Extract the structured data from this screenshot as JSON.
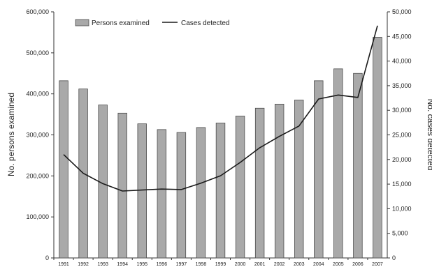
{
  "chart_data": {
    "type": "bar",
    "categories": [
      "1991",
      "1992",
      "1993",
      "1994",
      "1995",
      "1996",
      "1997",
      "1998",
      "1999",
      "2000",
      "2001",
      "2002",
      "2003",
      "2004",
      "2005",
      "2006",
      "2007"
    ],
    "series": [
      {
        "name": "Persons examined",
        "type": "bar",
        "axis": "left",
        "values": [
          432000,
          412000,
          373000,
          353000,
          327000,
          313000,
          306000,
          318000,
          329000,
          346000,
          365000,
          375000,
          385000,
          432000,
          461000,
          450000,
          538000
        ]
      },
      {
        "name": "Cases detected",
        "type": "line",
        "axis": "right",
        "values": [
          21000,
          17200,
          15100,
          13600,
          13800,
          14000,
          13900,
          15200,
          16700,
          19400,
          22400,
          24700,
          26800,
          32300,
          33100,
          32600,
          47200
        ]
      }
    ],
    "ylabel": "No. persons examined",
    "y2label": "No. cases detected",
    "ylim": [
      0,
      600000
    ],
    "y2lim": [
      0,
      50000
    ],
    "yticks": [
      "0",
      "100,000",
      "200,000",
      "300,000",
      "400,000",
      "500,000",
      "600,000"
    ],
    "y2ticks": [
      "0",
      "5,000",
      "10,000",
      "15,000",
      "20,000",
      "25,000",
      "30,000",
      "35,000",
      "40,000",
      "45,000",
      "50,000"
    ],
    "grid": false,
    "legend_position": "top-left",
    "colors": {
      "bar_fill": "#a9a9a9",
      "bar_stroke": "#4d4d4d",
      "line": "#1a1a1a",
      "axis": "#333333"
    }
  }
}
